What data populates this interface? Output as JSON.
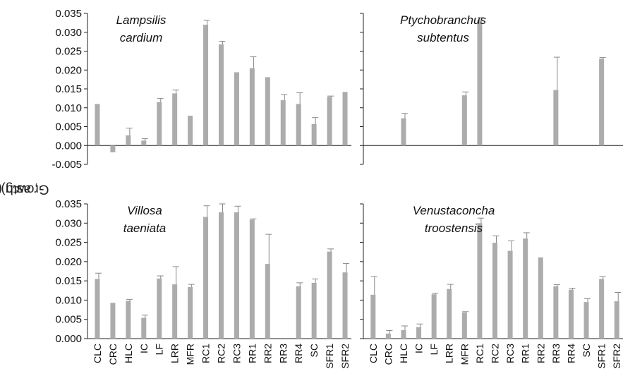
{
  "figure": {
    "ylabel_prefix": "Growth (d",
    "ylabel_sup": "-1",
    "ylabel_suffix": ", as g)"
  },
  "categories": [
    "CLC",
    "CRC",
    "HLC",
    "IC",
    "LF",
    "LRR",
    "MFR",
    "RC1",
    "RC2",
    "RC3",
    "RR1",
    "RR2",
    "RR3",
    "RR4",
    "SC",
    "SFR1",
    "SFR2"
  ],
  "chart_data": [
    {
      "type": "bar",
      "title_line1": "Lampsilis",
      "title_line2": "cardium",
      "ylim": [
        -0.005,
        0.035
      ],
      "yticks": [
        "-0.005",
        "0.000",
        "0.005",
        "0.010",
        "0.015",
        "0.020",
        "0.025",
        "0.030",
        "0.035"
      ],
      "ytick_values": [
        -0.005,
        0.0,
        0.005,
        0.01,
        0.015,
        0.02,
        0.025,
        0.03,
        0.035
      ],
      "show_xticklabels": false,
      "values": [
        0.011,
        -0.0018,
        0.0027,
        0.0013,
        0.0115,
        0.0138,
        0.0079,
        0.032,
        0.0268,
        0.0194,
        0.0205,
        0.0181,
        0.012,
        0.011,
        0.0057,
        0.0129,
        0.0142
      ],
      "err": [
        0,
        0,
        0.0019,
        0.0005,
        0.001,
        0.0009,
        0,
        0.0012,
        0.0008,
        0,
        0.003,
        0,
        0.0015,
        0.003,
        0.0017,
        0.0002,
        0
      ],
      "color": "#acacac"
    },
    {
      "type": "bar",
      "title_line1": "Ptychobranchus",
      "title_line2": "subtentus",
      "ylim": [
        -0.005,
        0.035
      ],
      "yticks": [],
      "ytick_values": [
        -0.005,
        0.0,
        0.005,
        0.01,
        0.015,
        0.02,
        0.025,
        0.03,
        0.035
      ],
      "show_xticklabels": false,
      "values": [
        null,
        null,
        0.0072,
        null,
        null,
        null,
        0.0133,
        0.0332,
        null,
        null,
        null,
        null,
        0.0147,
        null,
        null,
        0.023,
        null
      ],
      "err": [
        0,
        0,
        0.0013,
        0,
        0,
        0,
        0.0009,
        0.0007,
        0,
        0,
        0,
        0,
        0.0087,
        0,
        0,
        0.0003,
        0
      ],
      "color": "#acacac"
    },
    {
      "type": "bar",
      "title_line1": "Villosa",
      "title_line2": "taeniata",
      "ylim": [
        0.0,
        0.035
      ],
      "yticks": [
        "0.000",
        "0.005",
        "0.010",
        "0.015",
        "0.020",
        "0.025",
        "0.030",
        "0.035"
      ],
      "ytick_values": [
        0.0,
        0.005,
        0.01,
        0.015,
        0.02,
        0.025,
        0.03,
        0.035
      ],
      "show_xticklabels": true,
      "values": [
        0.0155,
        0.0093,
        0.0098,
        0.0054,
        0.0156,
        0.0141,
        0.0134,
        0.0316,
        0.0328,
        0.0328,
        0.0309,
        0.0194,
        null,
        0.0136,
        0.0145,
        0.0226,
        0.0172
      ],
      "err": [
        0.0015,
        0,
        0.0004,
        0.0007,
        0.0007,
        0.0046,
        0.0007,
        0.0029,
        0.0022,
        0.0016,
        0.0002,
        0.0077,
        0,
        0.0009,
        0.001,
        0.0007,
        0.0023
      ],
      "color": "#acacac"
    },
    {
      "type": "bar",
      "title_line1": "Venustaconcha",
      "title_line2": "troostensis",
      "ylim": [
        0.0,
        0.035
      ],
      "yticks": [],
      "ytick_values": [
        0.0,
        0.005,
        0.01,
        0.015,
        0.02,
        0.025,
        0.03,
        0.035
      ],
      "show_xticklabels": true,
      "values": [
        0.0114,
        0.0013,
        0.0022,
        0.003,
        0.0115,
        0.0129,
        0.0068,
        0.03,
        0.0249,
        0.0228,
        0.026,
        0.0211,
        0.0136,
        0.0127,
        0.0095,
        0.0155,
        0.0097
      ],
      "err": [
        0.0047,
        0.0008,
        0.0011,
        0.0008,
        0.0003,
        0.0012,
        0.0002,
        0.0013,
        0.0018,
        0.0026,
        0.0015,
        0,
        0.0004,
        0.0004,
        0.0009,
        0.0006,
        0.0023
      ],
      "color": "#acacac"
    }
  ]
}
